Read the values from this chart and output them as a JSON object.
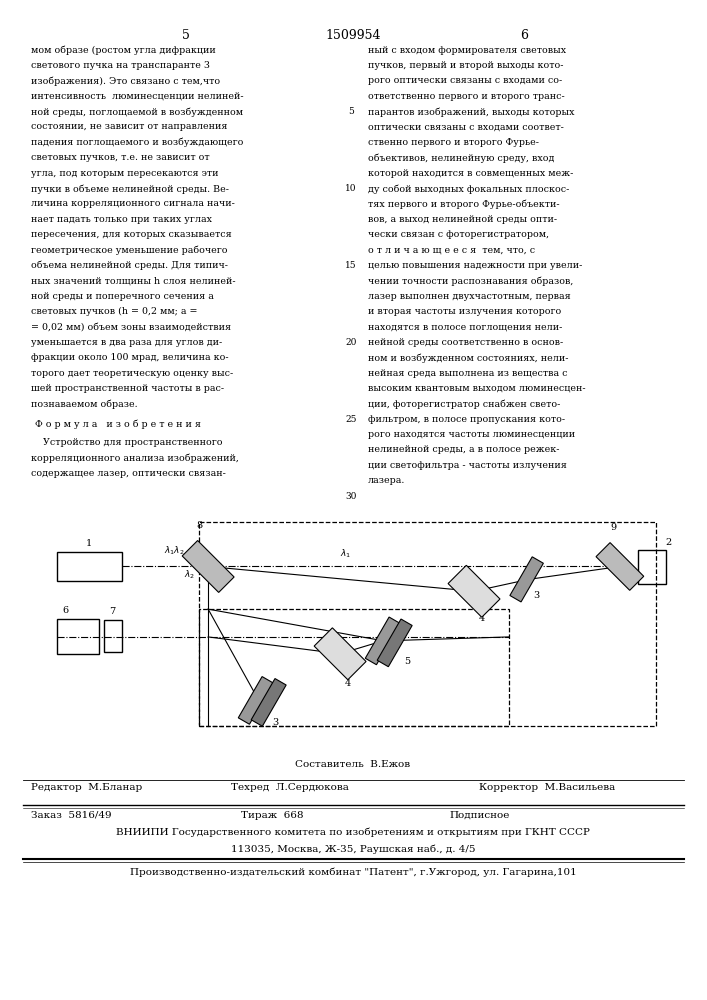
{
  "page_number_left": "5",
  "patent_number": "1509954",
  "page_number_right": "6",
  "col_left_text": [
    "мом образе (ростом угла дифракции",
    "светового пучка на транспаранте 3",
    "изображения). Это связано с тем,что",
    "интенсивность  люминесценции нелиней-",
    "ной среды, поглощаемой в возбужденном",
    "состоянии, не зависит от направления",
    "падения поглощаемого и возбуждающего",
    "световых пучков, т.е. не зависит от",
    "угла, под которым пересекаются эти",
    "пучки в объеме нелинейной среды. Ве-",
    "личина корреляционного сигнала начи-",
    "нает падать только при таких углах",
    "пересечения, для которых сказывается",
    "геометрическое уменьшение рабочего",
    "объема нелинейной среды. Для типич-",
    "ных значений толщины h слоя нелиней-",
    "ной среды и поперечного сечения а",
    "световых пучков (h = 0,2 мм; а =",
    "= 0,02 мм) объем зоны взаимодействия",
    "уменьшается в два раза для углов ди-",
    "фракции около 100 мрад, величина ко-",
    "торого дает теоретическую оценку выс-",
    "шей пространственной частоты в рас-",
    "познаваемом образе."
  ],
  "formula_header": "Ф о р м у л а   и з о б р е т е н и я",
  "formula_text": [
    "    Устройство для пространственного",
    "корреляционного анализа изображений,",
    "содержащее лазер, оптически связан-"
  ],
  "col_right_text": [
    "ный с входом формирователя световых",
    "пучков, первый и второй выходы кото-",
    "рого оптически связаны с входами со-",
    "ответственно первого и второго транс-",
    "парантов изображений, выходы которых",
    "оптически связаны с входами соответ-",
    "ственно первого и второго Фурье-",
    "объективов, нелинейную среду, вход",
    "которой находится в совмещенных меж-",
    "ду собой выходных фокальных плоскос-",
    "тях первого и второго Фурье-объекти-",
    "вов, а выход нелинейной среды опти-",
    "чески связан с фоторегистратором,",
    "о т л и ч а ю щ е е с я  тем, что, с",
    "целью повышения надежности при увели-",
    "чении точности распознавания образов,",
    "лазер выполнен двухчастотным, первая",
    "и вторая частоты излучения которого",
    "находятся в полосе поглощения нели-",
    "нейной среды соответственно в основ-",
    "ном и возбужденном состояниях, нели-",
    "нейная среда выполнена из вещества с",
    "высоким квантовым выходом люминесцен-",
    "ции, фоторегистратор снабжен свето-",
    "фильтром, в полосе пропускания кото-",
    "рого находятся частоты люминесценции",
    "нелинейной среды, а в полосе режек-",
    "ции светофильтра - частоты излучения",
    "лазера."
  ],
  "footer_sestavitel": "Составитель  В.Ежов",
  "footer_redaktor": "Редактор  М.Бланар",
  "footer_tekhred": "Техред  Л.Сердюкова",
  "footer_korrektor": "Корректор  М.Васильева",
  "footer_zakaz": "Заказ  5816/49",
  "footer_tirazh": "Тираж  668",
  "footer_podpisnoe": "Подписное",
  "footer_vniip": "ВНИИПИ Государственного комитета по изобретениям и открытиям при ГКНТ СССР",
  "footer_address": "113035, Москва, Ж-35, Раушская наб., д. 4/5",
  "footer_kombinat": "Производственно-издательский комбинат \"Патент\", г.Ужгород, ул. Гагарина,101",
  "bg_color": "#ffffff"
}
